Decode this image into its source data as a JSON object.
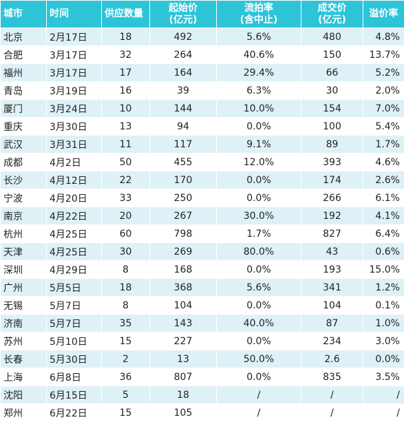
{
  "headers": {
    "city": "城市",
    "date": "时间",
    "supply": "供应数量",
    "start_price": [
      "起始价",
      "(亿元)"
    ],
    "fail_rate": [
      "流拍率",
      "(含中止)"
    ],
    "deal_price": [
      "成交价",
      "(亿元)"
    ],
    "premium": "溢价率"
  },
  "rows": [
    {
      "city": "北京",
      "date": "2月17日",
      "supply": "18",
      "start": "492",
      "fail": "5.6%",
      "deal": "480",
      "premium": "4.8%"
    },
    {
      "city": "合肥",
      "date": "3月17日",
      "supply": "32",
      "start": "264",
      "fail": "40.6%",
      "deal": "150",
      "premium": "13.7%"
    },
    {
      "city": "福州",
      "date": "3月17日",
      "supply": "17",
      "start": "164",
      "fail": "29.4%",
      "deal": "66",
      "premium": "5.2%"
    },
    {
      "city": "青岛",
      "date": "3月19日",
      "supply": "16",
      "start": "39",
      "fail": "6.3%",
      "deal": "30",
      "premium": "2.0%"
    },
    {
      "city": "厦门",
      "date": "3月24日",
      "supply": "10",
      "start": "144",
      "fail": "10.0%",
      "deal": "154",
      "premium": "7.0%"
    },
    {
      "city": "重庆",
      "date": "3月30日",
      "supply": "13",
      "start": "94",
      "fail": "0.0%",
      "deal": "100",
      "premium": "5.4%"
    },
    {
      "city": "武汉",
      "date": "3月31日",
      "supply": "11",
      "start": "117",
      "fail": "9.1%",
      "deal": "89",
      "premium": "1.7%"
    },
    {
      "city": "成都",
      "date": "4月2日",
      "supply": "50",
      "start": "455",
      "fail": "12.0%",
      "deal": "393",
      "premium": "4.6%"
    },
    {
      "city": "长沙",
      "date": "4月12日",
      "supply": "22",
      "start": "170",
      "fail": "0.0%",
      "deal": "174",
      "premium": "2.6%"
    },
    {
      "city": "宁波",
      "date": "4月20日",
      "supply": "33",
      "start": "250",
      "fail": "0.0%",
      "deal": "266",
      "premium": "6.1%"
    },
    {
      "city": "南京",
      "date": "4月22日",
      "supply": "20",
      "start": "267",
      "fail": "30.0%",
      "deal": "192",
      "premium": "4.1%"
    },
    {
      "city": "杭州",
      "date": "4月25日",
      "supply": "60",
      "start": "798",
      "fail": "1.7%",
      "deal": "827",
      "premium": "6.4%"
    },
    {
      "city": "天津",
      "date": "4月25日",
      "supply": "30",
      "start": "269",
      "fail": "80.0%",
      "deal": "43",
      "premium": "0.6%"
    },
    {
      "city": "深圳",
      "date": "4月29日",
      "supply": "8",
      "start": "168",
      "fail": "0.0%",
      "deal": "193",
      "premium": "15.0%"
    },
    {
      "city": "广州",
      "date": "5月5日",
      "supply": "18",
      "start": "368",
      "fail": "5.6%",
      "deal": "341",
      "premium": "1.2%"
    },
    {
      "city": "无锡",
      "date": "5月7日",
      "supply": "8",
      "start": "104",
      "fail": "0.0%",
      "deal": "104",
      "premium": "0.1%"
    },
    {
      "city": "济南",
      "date": "5月7日",
      "supply": "35",
      "start": "143",
      "fail": "40.0%",
      "deal": "87",
      "premium": "1.0%"
    },
    {
      "city": "苏州",
      "date": "5月10日",
      "supply": "15",
      "start": "227",
      "fail": "0.0%",
      "deal": "234",
      "premium": "3.0%"
    },
    {
      "city": "长春",
      "date": "5月30日",
      "supply": "2",
      "start": "13",
      "fail": "50.0%",
      "deal": "2.6",
      "premium": "0.0%"
    },
    {
      "city": "上海",
      "date": "6月8日",
      "supply": "36",
      "start": "807",
      "fail": "0.0%",
      "deal": "835",
      "premium": "3.5%"
    },
    {
      "city": "沈阳",
      "date": "6月15日",
      "supply": "5",
      "start": "18",
      "fail": "/",
      "deal": "/",
      "premium": "/"
    },
    {
      "city": "郑州",
      "date": "6月22日",
      "supply": "15",
      "start": "105",
      "fail": "/",
      "deal": "/",
      "premium": "/"
    }
  ]
}
